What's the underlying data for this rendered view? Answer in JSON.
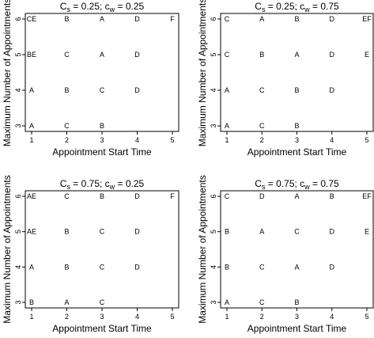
{
  "chart_data": [
    {
      "type": "scatter",
      "title": "C_s = 0.25; c_w = 0.25",
      "title_parts": {
        "C": "C",
        "s": "s",
        "mid": " = 0.25; c",
        "w": "w",
        "tail": " = 0.25"
      },
      "xlabel": "Appointment Start Time",
      "ylabel": "Maximum Number of Appointments",
      "xlim": [
        1,
        5
      ],
      "ylim": [
        3,
        6
      ],
      "xticks": [
        "1",
        "2",
        "3",
        "4",
        "5"
      ],
      "yticks": [
        "3",
        "4",
        "5",
        "6"
      ],
      "points": [
        {
          "x": 1,
          "y": 6,
          "label": "CE"
        },
        {
          "x": 2,
          "y": 6,
          "label": "B"
        },
        {
          "x": 3,
          "y": 6,
          "label": "A"
        },
        {
          "x": 4,
          "y": 6,
          "label": "D"
        },
        {
          "x": 5,
          "y": 6,
          "label": "F"
        },
        {
          "x": 1,
          "y": 5,
          "label": "BE"
        },
        {
          "x": 2,
          "y": 5,
          "label": "C"
        },
        {
          "x": 3,
          "y": 5,
          "label": "A"
        },
        {
          "x": 4,
          "y": 5,
          "label": "D"
        },
        {
          "x": 1,
          "y": 4,
          "label": "A"
        },
        {
          "x": 2,
          "y": 4,
          "label": "B"
        },
        {
          "x": 3,
          "y": 4,
          "label": "C"
        },
        {
          "x": 4,
          "y": 4,
          "label": "D"
        },
        {
          "x": 1,
          "y": 3,
          "label": "A"
        },
        {
          "x": 2,
          "y": 3,
          "label": "C"
        },
        {
          "x": 3,
          "y": 3,
          "label": "B"
        }
      ]
    },
    {
      "type": "scatter",
      "title": "C_s = 0.25; c_w = 0.75",
      "title_parts": {
        "C": "C",
        "s": "s",
        "mid": " = 0.25; c",
        "w": "w",
        "tail": " = 0.75"
      },
      "xlabel": "Appointment Start Time",
      "ylabel": "Maximum Number of Appointments",
      "xlim": [
        1,
        5
      ],
      "ylim": [
        3,
        6
      ],
      "xticks": [
        "1",
        "2",
        "3",
        "4",
        "5"
      ],
      "yticks": [
        "3",
        "4",
        "5",
        "6"
      ],
      "points": [
        {
          "x": 1,
          "y": 6,
          "label": "C"
        },
        {
          "x": 2,
          "y": 6,
          "label": "A"
        },
        {
          "x": 3,
          "y": 6,
          "label": "B"
        },
        {
          "x": 4,
          "y": 6,
          "label": "D"
        },
        {
          "x": 5,
          "y": 6,
          "label": "EF"
        },
        {
          "x": 1,
          "y": 5,
          "label": "C"
        },
        {
          "x": 2,
          "y": 5,
          "label": "B"
        },
        {
          "x": 3,
          "y": 5,
          "label": "A"
        },
        {
          "x": 4,
          "y": 5,
          "label": "D"
        },
        {
          "x": 5,
          "y": 5,
          "label": "E"
        },
        {
          "x": 1,
          "y": 4,
          "label": "A"
        },
        {
          "x": 2,
          "y": 4,
          "label": "C"
        },
        {
          "x": 3,
          "y": 4,
          "label": "B"
        },
        {
          "x": 4,
          "y": 4,
          "label": "D"
        },
        {
          "x": 1,
          "y": 3,
          "label": "A"
        },
        {
          "x": 2,
          "y": 3,
          "label": "C"
        },
        {
          "x": 3,
          "y": 3,
          "label": "B"
        }
      ]
    },
    {
      "type": "scatter",
      "title": "C_s = 0.75; c_w = 0.25",
      "title_parts": {
        "C": "C",
        "s": "s",
        "mid": " = 0.75; c",
        "w": "w",
        "tail": " = 0.25"
      },
      "xlabel": "Appointment Start Time",
      "ylabel": "Maximum Number of Appointments",
      "xlim": [
        1,
        5
      ],
      "ylim": [
        3,
        6
      ],
      "xticks": [
        "1",
        "2",
        "3",
        "4",
        "5"
      ],
      "yticks": [
        "3",
        "4",
        "5",
        "6"
      ],
      "points": [
        {
          "x": 1,
          "y": 6,
          "label": "AE"
        },
        {
          "x": 2,
          "y": 6,
          "label": "C"
        },
        {
          "x": 3,
          "y": 6,
          "label": "B"
        },
        {
          "x": 4,
          "y": 6,
          "label": "D"
        },
        {
          "x": 5,
          "y": 6,
          "label": "F"
        },
        {
          "x": 1,
          "y": 5,
          "label": "AE"
        },
        {
          "x": 2,
          "y": 5,
          "label": "B"
        },
        {
          "x": 3,
          "y": 5,
          "label": "C"
        },
        {
          "x": 4,
          "y": 5,
          "label": "D"
        },
        {
          "x": 1,
          "y": 4,
          "label": "A"
        },
        {
          "x": 2,
          "y": 4,
          "label": "B"
        },
        {
          "x": 3,
          "y": 4,
          "label": "C"
        },
        {
          "x": 4,
          "y": 4,
          "label": "D"
        },
        {
          "x": 1,
          "y": 3,
          "label": "B"
        },
        {
          "x": 2,
          "y": 3,
          "label": "A"
        },
        {
          "x": 3,
          "y": 3,
          "label": "C"
        }
      ]
    },
    {
      "type": "scatter",
      "title": "C_s = 0.75; c_w = 0.75",
      "title_parts": {
        "C": "C",
        "s": "s",
        "mid": " = 0.75; c",
        "w": "w",
        "tail": " = 0.75"
      },
      "xlabel": "Appointment Start Time",
      "ylabel": "Maximum Number of Appointments",
      "xlim": [
        1,
        5
      ],
      "ylim": [
        3,
        6
      ],
      "xticks": [
        "1",
        "2",
        "3",
        "4",
        "5"
      ],
      "yticks": [
        "3",
        "4",
        "5",
        "6"
      ],
      "points": [
        {
          "x": 1,
          "y": 6,
          "label": "C"
        },
        {
          "x": 2,
          "y": 6,
          "label": "D"
        },
        {
          "x": 3,
          "y": 6,
          "label": "A"
        },
        {
          "x": 4,
          "y": 6,
          "label": "B"
        },
        {
          "x": 5,
          "y": 6,
          "label": "EF"
        },
        {
          "x": 1,
          "y": 5,
          "label": "B"
        },
        {
          "x": 2,
          "y": 5,
          "label": "A"
        },
        {
          "x": 3,
          "y": 5,
          "label": "C"
        },
        {
          "x": 4,
          "y": 5,
          "label": "D"
        },
        {
          "x": 5,
          "y": 5,
          "label": "E"
        },
        {
          "x": 1,
          "y": 4,
          "label": "B"
        },
        {
          "x": 2,
          "y": 4,
          "label": "C"
        },
        {
          "x": 3,
          "y": 4,
          "label": "A"
        },
        {
          "x": 4,
          "y": 4,
          "label": "D"
        },
        {
          "x": 1,
          "y": 3,
          "label": "A"
        },
        {
          "x": 2,
          "y": 3,
          "label": "C"
        },
        {
          "x": 3,
          "y": 3,
          "label": "B"
        }
      ]
    }
  ]
}
